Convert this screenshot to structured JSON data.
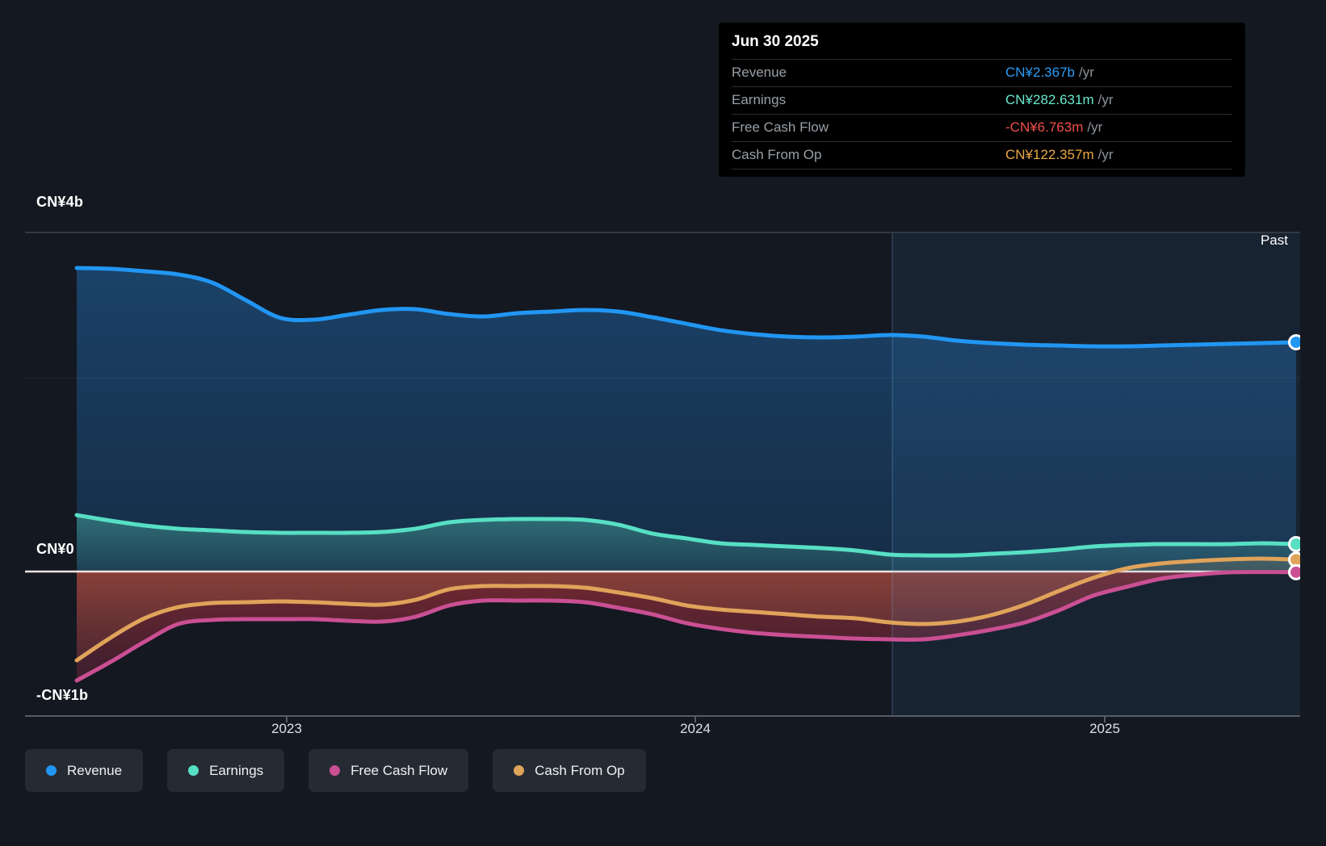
{
  "tooltip": {
    "date": "Jun 30 2025",
    "rows": [
      {
        "label": "Revenue",
        "value": "CN¥2.367b",
        "suffix": "/yr",
        "color": "#2d9cf4"
      },
      {
        "label": "Earnings",
        "value": "CN¥282.631m",
        "suffix": "/yr",
        "color": "#68e8cd"
      },
      {
        "label": "Free Cash Flow",
        "value": "-CN¥6.763m",
        "suffix": "/yr",
        "color": "#f25048"
      },
      {
        "label": "Cash From Op",
        "value": "CN¥122.357m",
        "suffix": "/yr",
        "color": "#eba843"
      }
    ]
  },
  "axis": {
    "y_labels": [
      "CN¥4b",
      "CN¥0",
      "-CN¥1b"
    ],
    "x_labels": [
      "2023",
      "2024",
      "2025"
    ],
    "past_label": "Past"
  },
  "legend": [
    {
      "label": "Revenue",
      "color": "#2196f3"
    },
    {
      "label": "Earnings",
      "color": "#57dfc4"
    },
    {
      "label": "Free Cash Flow",
      "color": "#ca4f93"
    },
    {
      "label": "Cash From Op",
      "color": "#e0a35a"
    }
  ],
  "chart_data": {
    "type": "area",
    "title": "Past earnings and revenue history (trailing twelve months)",
    "unit": "CN¥ billions",
    "x": [
      "2022-06",
      "2022-07",
      "2022-08",
      "2022-09",
      "2022-10",
      "2022-11",
      "2022-12",
      "2023-01",
      "2023-02",
      "2023-03",
      "2023-04",
      "2023-05",
      "2023-06",
      "2023-07",
      "2023-08",
      "2023-09",
      "2023-10",
      "2023-11",
      "2023-12",
      "2024-01",
      "2024-02",
      "2024-03",
      "2024-04",
      "2024-05",
      "2024-06",
      "2024-07",
      "2024-08",
      "2024-09",
      "2024-10",
      "2024-11",
      "2024-12",
      "2025-01",
      "2025-02",
      "2025-03",
      "2025-04",
      "2025-05",
      "2025-06"
    ],
    "x_ticks": [
      "2023",
      "2024",
      "2025"
    ],
    "ylim": [
      -1.5,
      3.5
    ],
    "y_gridline_values": [
      0,
      2
    ],
    "grid": "horizontal only",
    "legend_position": "bottom",
    "annotations": {
      "past_label": "Past",
      "highlight_band_start_x": "2024-06"
    },
    "end_point_values": {
      "Revenue": "CN¥2.367b /yr",
      "Earnings": "CN¥282.631m /yr",
      "Free Cash Flow": "-CN¥6.763m /yr",
      "Cash From Op": "CN¥122.357m /yr"
    },
    "series": [
      {
        "name": "Revenue",
        "color": "#2196f3",
        "values": [
          3.133,
          3.125,
          3.1,
          3.067,
          2.983,
          2.8,
          2.62,
          2.6,
          2.65,
          2.7,
          2.708,
          2.658,
          2.633,
          2.667,
          2.683,
          2.7,
          2.683,
          2.625,
          2.558,
          2.492,
          2.45,
          2.425,
          2.417,
          2.425,
          2.442,
          2.425,
          2.383,
          2.358,
          2.342,
          2.333,
          2.325,
          2.325,
          2.333,
          2.342,
          2.35,
          2.358,
          2.367
        ]
      },
      {
        "name": "Earnings",
        "color": "#57dfc4",
        "values": [
          0.583,
          0.525,
          0.475,
          0.442,
          0.425,
          0.408,
          0.4,
          0.4,
          0.4,
          0.408,
          0.442,
          0.508,
          0.533,
          0.542,
          0.542,
          0.533,
          0.483,
          0.392,
          0.342,
          0.292,
          0.275,
          0.258,
          0.242,
          0.217,
          0.175,
          0.167,
          0.167,
          0.183,
          0.2,
          0.225,
          0.258,
          0.275,
          0.283,
          0.283,
          0.283,
          0.292,
          0.283
        ]
      },
      {
        "name": "Free Cash Flow",
        "color": "#ca4f93",
        "values": [
          -1.125,
          -0.933,
          -0.725,
          -0.542,
          -0.5,
          -0.492,
          -0.492,
          -0.492,
          -0.508,
          -0.517,
          -0.467,
          -0.35,
          -0.3,
          -0.3,
          -0.3,
          -0.317,
          -0.375,
          -0.442,
          -0.533,
          -0.592,
          -0.633,
          -0.658,
          -0.675,
          -0.692,
          -0.7,
          -0.7,
          -0.658,
          -0.6,
          -0.525,
          -0.4,
          -0.25,
          -0.158,
          -0.075,
          -0.033,
          -0.008,
          -0.005,
          -0.007
        ]
      },
      {
        "name": "Cash From Op",
        "color": "#e0a35a",
        "values": [
          -0.917,
          -0.683,
          -0.483,
          -0.367,
          -0.325,
          -0.317,
          -0.308,
          -0.317,
          -0.333,
          -0.342,
          -0.292,
          -0.183,
          -0.15,
          -0.15,
          -0.15,
          -0.167,
          -0.217,
          -0.275,
          -0.35,
          -0.392,
          -0.417,
          -0.442,
          -0.467,
          -0.483,
          -0.525,
          -0.542,
          -0.517,
          -0.45,
          -0.342,
          -0.2,
          -0.067,
          0.033,
          0.083,
          0.108,
          0.125,
          0.133,
          0.122
        ]
      }
    ]
  }
}
